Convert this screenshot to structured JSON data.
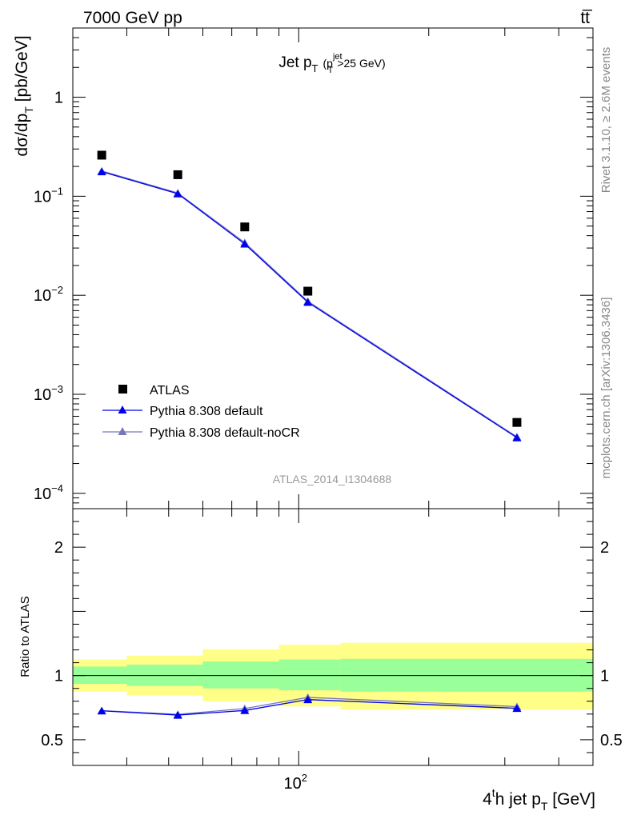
{
  "header": {
    "left": "7000 GeV pp",
    "right": "tt̅"
  },
  "side_labels": {
    "rivet": "Rivet 3.1.10, ≥ 2.6M events",
    "mcplots": "mcplots.cern.ch [arXiv:1306.3436]"
  },
  "colors": {
    "data": "#000000",
    "pythia_default": "#0000ee",
    "pythia_nocr": "#7777bb",
    "band_inner": "#99ff99",
    "band_outer": "#ffff88"
  },
  "chart_data": [
    {
      "type": "scatter",
      "title": {
        "main": "Jet p",
        "sub": "T",
        "paren_open": "(p",
        "sup": "jet",
        "paren_sub": "T",
        "paren_close": ">25 GeV)"
      },
      "ylabel": {
        "main": "dσ/dp",
        "sub": "T",
        "unit": " [pb/GeV]"
      },
      "yscale": "log",
      "ylim": [
        7e-05,
        5
      ],
      "xscale": "log",
      "xlim": [
        30,
        480
      ],
      "yticks": [
        {
          "value": 1,
          "label": "1"
        },
        {
          "value": 0.1,
          "base": "10",
          "exp": "−1"
        },
        {
          "value": 0.01,
          "base": "10",
          "exp": "−2"
        },
        {
          "value": 0.001,
          "base": "10",
          "exp": "−3"
        },
        {
          "value": 0.0001,
          "base": "10",
          "exp": "−4"
        }
      ],
      "watermark": "ATLAS_2014_I1304688",
      "legend_position": "bottom-left",
      "series": [
        {
          "name": "ATLAS",
          "marker": "square",
          "x": [
            35,
            52.5,
            75,
            105,
            320
          ],
          "y": [
            0.26,
            0.165,
            0.049,
            0.011,
            0.00052
          ]
        },
        {
          "name": "Pythia 8.308 default",
          "marker": "triangle",
          "x": [
            35,
            52.5,
            75,
            105,
            320
          ],
          "y": [
            0.177,
            0.106,
            0.033,
            0.0085,
            0.000365
          ]
        },
        {
          "name": "Pythia 8.308 default-noCR",
          "marker": "triangle",
          "x": [
            35,
            52.5,
            75,
            105,
            320
          ],
          "y": [
            0.18,
            0.108,
            0.034,
            0.0087,
            0.000372
          ]
        }
      ]
    },
    {
      "type": "line",
      "ylabel": "Ratio to ATLAS",
      "ylim": [
        0.3,
        2.3
      ],
      "xscale": "log",
      "xlim": [
        30,
        480
      ],
      "yticks": [
        {
          "value": 0.5,
          "label": "0.5"
        },
        {
          "value": 1,
          "label": "1"
        },
        {
          "value": 2,
          "label": "2"
        }
      ],
      "xticks": [
        {
          "value": 100,
          "base": "10",
          "exp": "2"
        }
      ],
      "xlabel": {
        "pre": "4",
        "sup": "t",
        "mid": "h jet p",
        "sub": "T",
        "unit": " [GeV]"
      },
      "bands": {
        "edges": [
          30,
          40,
          60,
          90,
          125,
          480
        ],
        "inner": [
          [
            0.935,
            1.07
          ],
          [
            0.92,
            1.085
          ],
          [
            0.9,
            1.11
          ],
          [
            0.885,
            1.125
          ],
          [
            0.875,
            1.13
          ]
        ],
        "outer": [
          [
            0.875,
            1.125
          ],
          [
            0.845,
            1.155
          ],
          [
            0.8,
            1.205
          ],
          [
            0.76,
            1.24
          ],
          [
            0.735,
            1.255
          ]
        ]
      },
      "series": [
        {
          "name": "Pythia 8.308 default",
          "x": [
            35,
            52.5,
            75,
            105,
            320
          ],
          "y": [
            0.725,
            0.692,
            0.728,
            0.813,
            0.745
          ]
        },
        {
          "name": "Pythia 8.308 default-noCR",
          "x": [
            35,
            52.5,
            75,
            105,
            320
          ],
          "y": [
            0.727,
            0.698,
            0.743,
            0.83,
            0.758
          ]
        }
      ]
    }
  ]
}
